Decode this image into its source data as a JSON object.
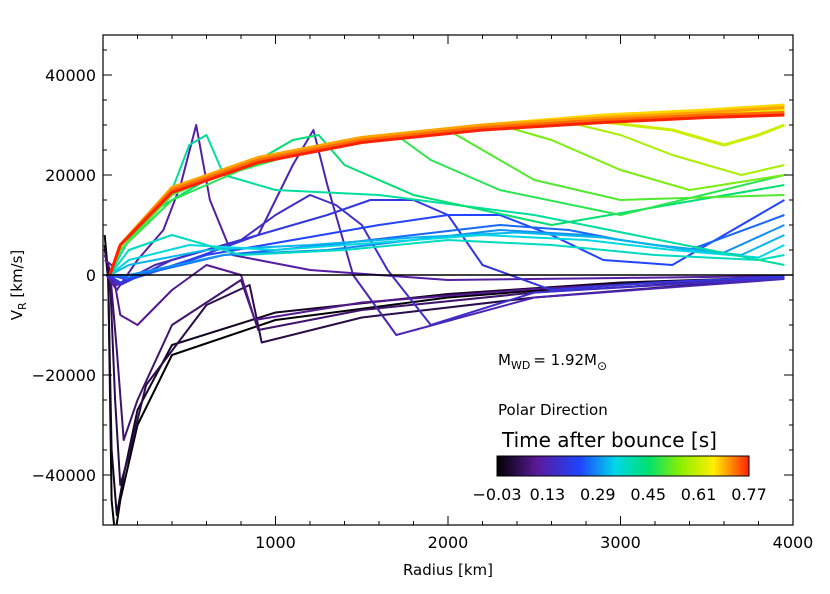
{
  "chart_data": {
    "type": "line",
    "title": "",
    "xlabel": "Radius [km]",
    "ylabel_main": "V",
    "ylabel_sub": "R",
    "ylabel_units": " [km/s]",
    "xlim": [
      0,
      4000
    ],
    "ylim": [
      -50000,
      48000
    ],
    "x_ticks": [
      1000,
      2000,
      3000,
      4000
    ],
    "y_ticks": [
      40000,
      20000,
      0,
      -20000,
      -40000
    ],
    "x_tick_labels": [
      "1000",
      "2000",
      "3000",
      "4000"
    ],
    "y_tick_labels": [
      "40000",
      "20000",
      "0",
      "−20000",
      "−40000"
    ],
    "annotation_mass_prefix": "M",
    "annotation_mass_sub": "WD",
    "annotation_mass_value": "= 1.92M",
    "annotation_mass_symbol": "⊙",
    "annotation_direction": "Polar Direction",
    "colorbar": {
      "title": "Time after bounce [s]",
      "range": [
        -0.03,
        0.77
      ],
      "tick_labels": [
        "−0.03",
        "0.13",
        "0.29",
        "0.45",
        "0.61",
        "0.77"
      ],
      "tick_values": [
        -0.03,
        0.13,
        0.29,
        0.45,
        0.61,
        0.77
      ]
    },
    "series": [
      {
        "name": "t=-0.03",
        "time": -0.03,
        "x": [
          10,
          30,
          50,
          70,
          100,
          200,
          400,
          1000,
          2000,
          3000,
          3950
        ],
        "y": [
          8000,
          0,
          -45000,
          -52000,
          -45000,
          -30000,
          -16000,
          -9000,
          -4500,
          -1800,
          -500
        ]
      },
      {
        "name": "t=0.00",
        "time": 0.0,
        "x": [
          10,
          30,
          50,
          80,
          120,
          200,
          400,
          1000,
          2000,
          3000,
          3950
        ],
        "y": [
          6000,
          -1000,
          -35000,
          -48000,
          -40000,
          -27000,
          -14000,
          -7500,
          -3800,
          -1500,
          -400
        ]
      },
      {
        "name": "t=0.03",
        "time": 0.03,
        "x": [
          10,
          40,
          70,
          100,
          150,
          250,
          600,
          850,
          920,
          1500,
          2500,
          3950
        ],
        "y": [
          5000,
          0,
          -25000,
          -42000,
          -36000,
          -22000,
          -6000,
          -2000,
          -13500,
          -8500,
          -4500,
          -500
        ]
      },
      {
        "name": "t=0.06",
        "time": 0.06,
        "x": [
          10,
          40,
          80,
          120,
          200,
          400,
          800,
          900,
          1500,
          2500,
          3950
        ],
        "y": [
          4000,
          1000,
          -15000,
          -33000,
          -25000,
          -10000,
          -1000,
          -11000,
          -7000,
          -3500,
          -400
        ]
      },
      {
        "name": "t=0.09",
        "time": 0.09,
        "x": [
          10,
          50,
          100,
          200,
          400,
          600,
          800,
          880,
          1500,
          2500,
          3950
        ],
        "y": [
          3000,
          2000,
          -8000,
          -10000,
          -3000,
          2000,
          0,
          -9000,
          -5500,
          -2800,
          -300
        ]
      },
      {
        "name": "t=0.11",
        "time": 0.11,
        "x": [
          20,
          80,
          200,
          350,
          450,
          540,
          620,
          750,
          1200,
          2000,
          3000,
          3950
        ],
        "y": [
          0,
          -3000,
          3000,
          9000,
          18000,
          30000,
          15000,
          4000,
          1000,
          -1000,
          -600,
          -200
        ]
      },
      {
        "name": "t=0.13",
        "time": 0.13,
        "x": [
          20,
          80,
          300,
          600,
          900,
          1100,
          1220,
          1300,
          1450,
          1700,
          2500,
          3950
        ],
        "y": [
          0,
          -2000,
          2000,
          5000,
          8000,
          22000,
          29000,
          18000,
          0,
          -12000,
          -4500,
          -800
        ]
      },
      {
        "name": "t=0.16",
        "time": 0.16,
        "x": [
          30,
          100,
          400,
          800,
          1000,
          1200,
          1350,
          1500,
          1650,
          1900,
          2500,
          3950
        ],
        "y": [
          0,
          -2000,
          3000,
          7000,
          12000,
          16000,
          14000,
          10000,
          1000,
          -10000,
          -3500,
          -600
        ]
      },
      {
        "name": "t=0.19",
        "time": 0.19,
        "x": [
          30,
          100,
          500,
          900,
          1300,
          1550,
          1800,
          2000,
          2200,
          2600,
          3200,
          3950
        ],
        "y": [
          0,
          -1500,
          3000,
          8000,
          12000,
          15000,
          15000,
          12000,
          2000,
          -3000,
          -1500,
          -300
        ]
      },
      {
        "name": "t=0.23",
        "time": 0.23,
        "x": [
          40,
          150,
          600,
          1100,
          1600,
          2000,
          2300,
          2600,
          2900,
          3300,
          3950
        ],
        "y": [
          0,
          -1000,
          4000,
          7000,
          10000,
          12000,
          12000,
          8000,
          3000,
          2000,
          15000
        ]
      },
      {
        "name": "t=0.26",
        "time": 0.26,
        "x": [
          40,
          150,
          700,
          1300,
          1800,
          2300,
          2700,
          3000,
          3400,
          3950
        ],
        "y": [
          0,
          -500,
          4000,
          6000,
          8000,
          10000,
          9000,
          7000,
          5000,
          12000
        ]
      },
      {
        "name": "t=0.29",
        "time": 0.29,
        "x": [
          40,
          150,
          700,
          1300,
          1800,
          2300,
          2800,
          3200,
          3600,
          3950
        ],
        "y": [
          0,
          0,
          4000,
          5000,
          7000,
          9000,
          8000,
          6000,
          4500,
          10000
        ]
      },
      {
        "name": "t=0.32",
        "time": 0.32,
        "x": [
          40,
          150,
          600,
          1200,
          1800,
          2400,
          2900,
          3300,
          3700,
          3950
        ],
        "y": [
          0,
          2000,
          5000,
          6000,
          7500,
          8500,
          7500,
          5500,
          4000,
          8000
        ]
      },
      {
        "name": "t=0.35",
        "time": 0.35,
        "x": [
          40,
          150,
          500,
          1000,
          1600,
          2200,
          2800,
          3300,
          3800,
          3950
        ],
        "y": [
          0,
          3000,
          6000,
          5000,
          6500,
          8000,
          7000,
          5000,
          3500,
          6000
        ]
      },
      {
        "name": "t=0.38",
        "time": 0.38,
        "x": [
          40,
          150,
          400,
          800,
          1400,
          2000,
          2600,
          3200,
          3800,
          3950
        ],
        "y": [
          0,
          5000,
          8000,
          4000,
          5000,
          7000,
          6000,
          4000,
          3000,
          4000
        ]
      },
      {
        "name": "t=0.41",
        "time": 0.41,
        "x": [
          40,
          100,
          200,
          400,
          500,
          600,
          700,
          1000,
          1600,
          2500,
          3950
        ],
        "y": [
          0,
          4000,
          10000,
          17000,
          26000,
          28000,
          20000,
          17000,
          16000,
          12000,
          2000
        ]
      },
      {
        "name": "t=0.45",
        "time": 0.45,
        "x": [
          40,
          100,
          300,
          600,
          900,
          1100,
          1250,
          1400,
          1800,
          2600,
          3950
        ],
        "y": [
          0,
          5000,
          13000,
          19000,
          23000,
          27000,
          28000,
          22000,
          16000,
          10000,
          18000
        ]
      },
      {
        "name": "t=0.48",
        "time": 0.48,
        "x": [
          40,
          100,
          400,
          800,
          1200,
          1500,
          1700,
          1900,
          2300,
          3000,
          3950
        ],
        "y": [
          0,
          5000,
          15000,
          21000,
          25000,
          27000,
          28000,
          23000,
          17000,
          12000,
          20000
        ]
      },
      {
        "name": "t=0.51",
        "time": 0.51,
        "x": [
          40,
          100,
          400,
          800,
          1300,
          1700,
          2000,
          2200,
          2500,
          3000,
          3950
        ],
        "y": [
          0,
          5000,
          16000,
          22000,
          26000,
          28000,
          29000,
          25000,
          19000,
          15000,
          16000
        ]
      },
      {
        "name": "t=0.54",
        "time": 0.54,
        "x": [
          40,
          100,
          400,
          900,
          1400,
          2000,
          2300,
          2600,
          3000,
          3400,
          3950
        ],
        "y": [
          0,
          6000,
          17000,
          23000,
          27000,
          29000,
          30000,
          27000,
          21000,
          17000,
          20000
        ]
      },
      {
        "name": "t=0.58",
        "time": 0.58,
        "x": [
          40,
          100,
          400,
          900,
          1500,
          2100,
          2700,
          3000,
          3300,
          3700,
          3950
        ],
        "y": [
          0,
          6000,
          17000,
          23000,
          27000,
          29000,
          30500,
          28000,
          24000,
          20000,
          22000
        ]
      },
      {
        "name": "t=0.61",
        "time": 0.61,
        "x": [
          40,
          100,
          400,
          900,
          1500,
          2200,
          2800,
          3300,
          3600,
          3800,
          3950
        ],
        "y": [
          0,
          6000,
          17000,
          23000,
          27000,
          29500,
          31000,
          29000,
          26000,
          28000,
          30000
        ]
      },
      {
        "name": "t=0.64",
        "time": 0.64,
        "x": [
          40,
          100,
          400,
          900,
          1500,
          2200,
          2900,
          3500,
          3950
        ],
        "y": [
          0,
          6000,
          17500,
          23500,
          27500,
          29800,
          31500,
          32500,
          33000
        ]
      },
      {
        "name": "t=0.67",
        "time": 0.67,
        "x": [
          40,
          100,
          400,
          900,
          1500,
          2200,
          2900,
          3500,
          3950
        ],
        "y": [
          0,
          6000,
          17500,
          23500,
          27500,
          30000,
          32000,
          33000,
          34000
        ]
      },
      {
        "name": "t=0.70",
        "time": 0.7,
        "x": [
          40,
          100,
          400,
          900,
          1500,
          2200,
          2900,
          3500,
          3950
        ],
        "y": [
          0,
          6000,
          17500,
          23500,
          27500,
          30000,
          31500,
          32500,
          33500
        ]
      },
      {
        "name": "t=0.73",
        "time": 0.73,
        "x": [
          40,
          100,
          400,
          900,
          1500,
          2200,
          2900,
          3500,
          3950
        ],
        "y": [
          0,
          6000,
          17000,
          23000,
          27000,
          29500,
          31000,
          32000,
          32500
        ]
      },
      {
        "name": "t=0.77",
        "time": 0.77,
        "x": [
          40,
          100,
          400,
          900,
          1500,
          2200,
          2900,
          3500,
          3950
        ],
        "y": [
          0,
          6000,
          16500,
          22500,
          26500,
          29000,
          30500,
          31500,
          32000
        ]
      }
    ]
  }
}
